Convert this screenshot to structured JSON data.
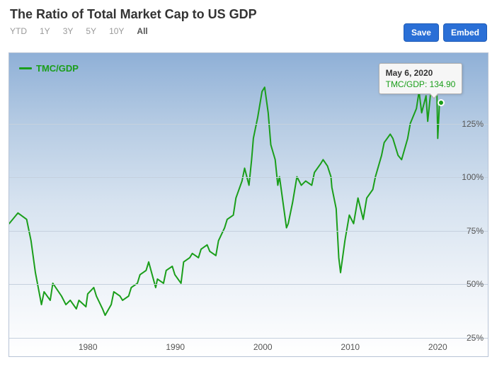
{
  "title": "The Ratio of Total Market Cap to US GDP",
  "range_selector": {
    "options": [
      "YTD",
      "1Y",
      "3Y",
      "5Y",
      "10Y",
      "All"
    ],
    "active": "All"
  },
  "buttons": {
    "save": "Save",
    "embed": "Embed"
  },
  "legend": {
    "label": "TMC/GDP",
    "color": "#1a9e1a"
  },
  "tooltip": {
    "date": "May 6, 2020",
    "series_label": "TMC/GDP",
    "value": "134.90",
    "x_year": 2020.35,
    "y_value": 134.9
  },
  "chart": {
    "type": "line",
    "xlim": [
      1971,
      2022
    ],
    "ylim": [
      25,
      158
    ],
    "ytick_values": [
      25,
      50,
      75,
      100,
      125
    ],
    "ytick_labels": [
      "25%",
      "50%",
      "75%",
      "100%",
      "125%"
    ],
    "xtick_values": [
      1980,
      1990,
      2000,
      2010,
      2020
    ],
    "xtick_labels": [
      "1980",
      "1990",
      "2000",
      "2010",
      "2020"
    ],
    "line_color": "#1a9e1a",
    "line_width": 2,
    "background_gradient_top": "#8fb0d7",
    "background_gradient_bottom": "#ffffff",
    "grid_color": "#c5d0de",
    "border_color": "#b8c4d6",
    "title_fontsize": 18,
    "label_fontsize": 12,
    "series": [
      {
        "x": 1971,
        "y": 78
      },
      {
        "x": 1972,
        "y": 83
      },
      {
        "x": 1973,
        "y": 80
      },
      {
        "x": 1973.5,
        "y": 70
      },
      {
        "x": 1974,
        "y": 55
      },
      {
        "x": 1974.7,
        "y": 40
      },
      {
        "x": 1975,
        "y": 46
      },
      {
        "x": 1975.7,
        "y": 42
      },
      {
        "x": 1976,
        "y": 50
      },
      {
        "x": 1977,
        "y": 44
      },
      {
        "x": 1977.5,
        "y": 40
      },
      {
        "x": 1978,
        "y": 42
      },
      {
        "x": 1978.7,
        "y": 38
      },
      {
        "x": 1979,
        "y": 42
      },
      {
        "x": 1979.8,
        "y": 39
      },
      {
        "x": 1980,
        "y": 45
      },
      {
        "x": 1980.7,
        "y": 48
      },
      {
        "x": 1981,
        "y": 44
      },
      {
        "x": 1981.7,
        "y": 38
      },
      {
        "x": 1982,
        "y": 35
      },
      {
        "x": 1982.7,
        "y": 40
      },
      {
        "x": 1983,
        "y": 46
      },
      {
        "x": 1983.7,
        "y": 44
      },
      {
        "x": 1984,
        "y": 42
      },
      {
        "x": 1984.7,
        "y": 44
      },
      {
        "x": 1985,
        "y": 48
      },
      {
        "x": 1985.7,
        "y": 50
      },
      {
        "x": 1986,
        "y": 54
      },
      {
        "x": 1986.7,
        "y": 56
      },
      {
        "x": 1987,
        "y": 60
      },
      {
        "x": 1987.8,
        "y": 48
      },
      {
        "x": 1988,
        "y": 52
      },
      {
        "x": 1988.7,
        "y": 50
      },
      {
        "x": 1989,
        "y": 56
      },
      {
        "x": 1989.7,
        "y": 58
      },
      {
        "x": 1990,
        "y": 54
      },
      {
        "x": 1990.7,
        "y": 50
      },
      {
        "x": 1991,
        "y": 60
      },
      {
        "x": 1991.7,
        "y": 62
      },
      {
        "x": 1992,
        "y": 64
      },
      {
        "x": 1992.7,
        "y": 62
      },
      {
        "x": 1993,
        "y": 66
      },
      {
        "x": 1993.7,
        "y": 68
      },
      {
        "x": 1994,
        "y": 65
      },
      {
        "x": 1994.7,
        "y": 63
      },
      {
        "x": 1995,
        "y": 70
      },
      {
        "x": 1995.7,
        "y": 76
      },
      {
        "x": 1996,
        "y": 80
      },
      {
        "x": 1996.7,
        "y": 82
      },
      {
        "x": 1997,
        "y": 90
      },
      {
        "x": 1997.7,
        "y": 98
      },
      {
        "x": 1998,
        "y": 104
      },
      {
        "x": 1998.5,
        "y": 96
      },
      {
        "x": 1998.8,
        "y": 108
      },
      {
        "x": 1999,
        "y": 118
      },
      {
        "x": 1999.5,
        "y": 128
      },
      {
        "x": 2000,
        "y": 140
      },
      {
        "x": 2000.3,
        "y": 142
      },
      {
        "x": 2000.7,
        "y": 130
      },
      {
        "x": 2001,
        "y": 115
      },
      {
        "x": 2001.5,
        "y": 108
      },
      {
        "x": 2001.8,
        "y": 96
      },
      {
        "x": 2002,
        "y": 100
      },
      {
        "x": 2002.5,
        "y": 85
      },
      {
        "x": 2002.8,
        "y": 76
      },
      {
        "x": 2003,
        "y": 78
      },
      {
        "x": 2003.5,
        "y": 88
      },
      {
        "x": 2004,
        "y": 100
      },
      {
        "x": 2004.5,
        "y": 96
      },
      {
        "x": 2005,
        "y": 98
      },
      {
        "x": 2005.7,
        "y": 96
      },
      {
        "x": 2006,
        "y": 102
      },
      {
        "x": 2006.7,
        "y": 106
      },
      {
        "x": 2007,
        "y": 108
      },
      {
        "x": 2007.5,
        "y": 105
      },
      {
        "x": 2007.9,
        "y": 100
      },
      {
        "x": 2008,
        "y": 95
      },
      {
        "x": 2008.5,
        "y": 85
      },
      {
        "x": 2008.8,
        "y": 62
      },
      {
        "x": 2009,
        "y": 55
      },
      {
        "x": 2009.5,
        "y": 70
      },
      {
        "x": 2010,
        "y": 82
      },
      {
        "x": 2010.5,
        "y": 78
      },
      {
        "x": 2011,
        "y": 90
      },
      {
        "x": 2011.6,
        "y": 80
      },
      {
        "x": 2012,
        "y": 90
      },
      {
        "x": 2012.7,
        "y": 94
      },
      {
        "x": 2013,
        "y": 100
      },
      {
        "x": 2013.7,
        "y": 110
      },
      {
        "x": 2014,
        "y": 116
      },
      {
        "x": 2014.7,
        "y": 120
      },
      {
        "x": 2015,
        "y": 118
      },
      {
        "x": 2015.6,
        "y": 110
      },
      {
        "x": 2016,
        "y": 108
      },
      {
        "x": 2016.7,
        "y": 118
      },
      {
        "x": 2017,
        "y": 125
      },
      {
        "x": 2017.7,
        "y": 132
      },
      {
        "x": 2018,
        "y": 140
      },
      {
        "x": 2018.3,
        "y": 130
      },
      {
        "x": 2018.8,
        "y": 138
      },
      {
        "x": 2019,
        "y": 126
      },
      {
        "x": 2019.3,
        "y": 138
      },
      {
        "x": 2019.8,
        "y": 146
      },
      {
        "x": 2020,
        "y": 150
      },
      {
        "x": 2020.15,
        "y": 118
      },
      {
        "x": 2020.35,
        "y": 134.9
      }
    ]
  }
}
